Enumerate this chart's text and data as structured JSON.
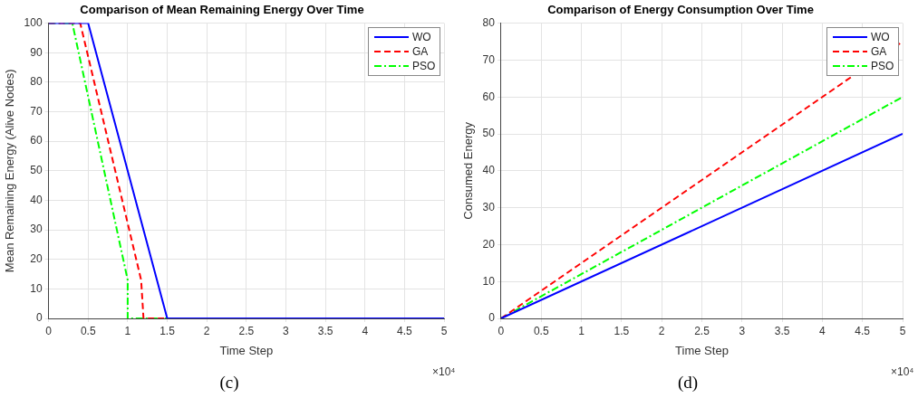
{
  "chart_data": [
    {
      "type": "line",
      "title": "Comparison of Mean Remaining Energy Over Time",
      "xlabel": "Time Step",
      "ylabel": "Mean Remaining Energy (Alive Nodes)",
      "annotations": [
        "×10⁴",
        "(c)"
      ],
      "xlim": [
        0,
        5
      ],
      "xticks": [
        0,
        0.5,
        1,
        1.5,
        2,
        2.5,
        3,
        3.5,
        4,
        4.5,
        5
      ],
      "ylim": [
        0,
        100
      ],
      "yticks": [
        0,
        10,
        20,
        30,
        40,
        50,
        60,
        70,
        80,
        90,
        100
      ],
      "grid": true,
      "legend": "top right",
      "marker": "none",
      "series": [
        {
          "name": "WO",
          "color": "#0000ff",
          "line_style": "solid",
          "x": [
            0,
            0.5,
            1.5,
            5
          ],
          "values": [
            100,
            100,
            0,
            0
          ]
        },
        {
          "name": "GA",
          "color": "#ff0000",
          "line_style": "dashed",
          "x": [
            0,
            0.4,
            1.17,
            1.2,
            5
          ],
          "values": [
            100,
            100,
            13,
            0,
            0
          ]
        },
        {
          "name": "PSO",
          "color": "#00ff00",
          "line_style": "dashdot",
          "x": [
            0,
            0.3,
            1,
            1,
            5
          ],
          "values": [
            100,
            100,
            13,
            0,
            0
          ]
        }
      ]
    },
    {
      "type": "line",
      "title": "Comparison of Energy Consumption Over Time",
      "xlabel": "Time Step",
      "ylabel": "Consumed Energy",
      "annotations": [
        "×10⁴",
        "(d)"
      ],
      "xlim": [
        0,
        5
      ],
      "xticks": [
        0,
        0.5,
        1,
        1.5,
        2,
        2.5,
        3,
        3.5,
        4,
        4.5,
        5
      ],
      "ylim": [
        0,
        80
      ],
      "yticks": [
        0,
        10,
        20,
        30,
        40,
        50,
        60,
        70,
        80
      ],
      "grid": true,
      "legend": "top right",
      "marker": "none",
      "series": [
        {
          "name": "WO",
          "color": "#0000ff",
          "line_style": "solid",
          "x": [
            0,
            5
          ],
          "values": [
            0,
            50
          ]
        },
        {
          "name": "GA",
          "color": "#ff0000",
          "line_style": "dashed",
          "x": [
            0,
            5
          ],
          "values": [
            0,
            75
          ]
        },
        {
          "name": "PSO",
          "color": "#00ff00",
          "line_style": "dashdot",
          "x": [
            0,
            5
          ],
          "values": [
            0,
            60
          ]
        }
      ]
    }
  ]
}
